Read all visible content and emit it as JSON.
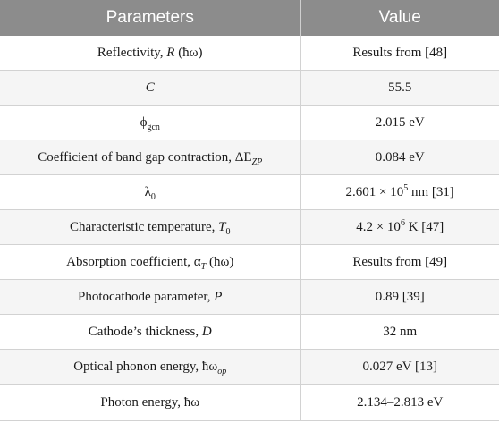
{
  "header": {
    "col1": "Parameters",
    "col2": "Value"
  },
  "rows": [
    {
      "param": {
        "pre": "Reflectivity, ",
        "sym": "R",
        "post": " (ħω)"
      },
      "value": {
        "pre": "Results from [48]"
      }
    },
    {
      "param": {
        "sym": "C"
      },
      "value": {
        "pre": "55.5"
      }
    },
    {
      "param": {
        "pre": "ϕ",
        "sub": "gcn"
      },
      "value": {
        "pre": "2.015 eV"
      }
    },
    {
      "param": {
        "pre": "Coefficient of band gap contraction, ΔE",
        "sub_italic": "ZP"
      },
      "value": {
        "pre": "0.084 eV"
      }
    },
    {
      "param": {
        "pre": "λ",
        "sub": "0"
      },
      "value": {
        "pre": "2.601 × 10",
        "sup": "5",
        "post": " nm [31]"
      }
    },
    {
      "param": {
        "pre": "Characteristic temperature, ",
        "sym": "T",
        "sub": "0"
      },
      "value": {
        "pre": "4.2 × 10",
        "sup": "6",
        "post": " K [47]"
      }
    },
    {
      "param": {
        "pre": "Absorption coefficient, α",
        "sub_italic": "T",
        "post": " (ħω)"
      },
      "value": {
        "pre": "Results from [49]"
      }
    },
    {
      "param": {
        "pre": "Photocathode parameter, ",
        "sym": "P"
      },
      "value": {
        "pre": "0.89 [39]"
      }
    },
    {
      "param": {
        "pre": "Cathode’s thickness, ",
        "sym": "D"
      },
      "value": {
        "pre": "32 nm"
      }
    },
    {
      "param": {
        "pre": "Optical phonon energy, ħω",
        "sub_italic": "op"
      },
      "value": {
        "pre": "0.027 eV [13]"
      }
    },
    {
      "param": {
        "pre": "Photon energy, ħω"
      },
      "value": {
        "pre": "2.134–2.813 eV"
      }
    }
  ]
}
